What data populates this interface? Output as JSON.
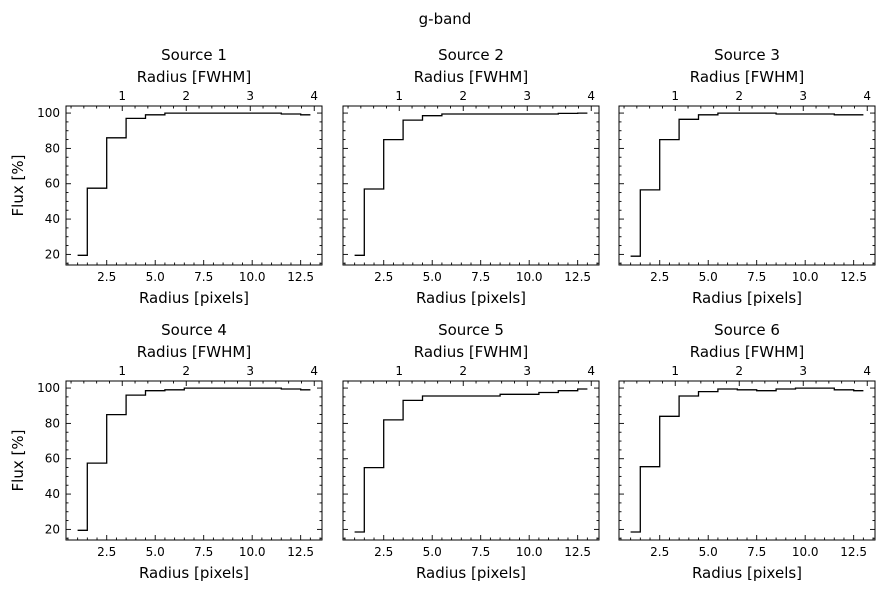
{
  "figure": {
    "suptitle": "g-band"
  },
  "chart_data": [
    {
      "type": "line",
      "step": "mid",
      "title": "Source 1",
      "xlabel": "Radius [pixels]",
      "ylabel": "Flux [%]",
      "top_xlabel": "Radius [FWHM]",
      "xlim": [
        0.4,
        13.6
      ],
      "ylim": [
        14,
        104
      ],
      "xticks": [
        2.5,
        5.0,
        7.5,
        10.0,
        12.5
      ],
      "yticks": [
        20,
        40,
        60,
        80,
        100
      ],
      "top_xticks": [
        1,
        2,
        3,
        4
      ],
      "fwhm_px": 3.3,
      "x": [
        1,
        2,
        3,
        4,
        5,
        6,
        7,
        8,
        9,
        10,
        11,
        12,
        13
      ],
      "y": [
        19.5,
        57.5,
        86.0,
        97.0,
        99.0,
        100.0,
        100.0,
        100.0,
        100.0,
        100.0,
        100.0,
        99.5,
        99.0
      ]
    },
    {
      "type": "line",
      "step": "mid",
      "title": "Source 2",
      "xlabel": "Radius [pixels]",
      "ylabel": "",
      "top_xlabel": "Radius [FWHM]",
      "xlim": [
        0.4,
        13.6
      ],
      "ylim": [
        14,
        104
      ],
      "xticks": [
        2.5,
        5.0,
        7.5,
        10.0,
        12.5
      ],
      "yticks": [
        20,
        40,
        60,
        80,
        100
      ],
      "top_xticks": [
        1,
        2,
        3,
        4
      ],
      "fwhm_px": 3.3,
      "x": [
        1,
        2,
        3,
        4,
        5,
        6,
        7,
        8,
        9,
        10,
        11,
        12,
        13
      ],
      "y": [
        19.5,
        57.0,
        85.0,
        96.0,
        98.5,
        99.5,
        99.5,
        99.5,
        99.5,
        99.5,
        99.5,
        99.8,
        100.0
      ]
    },
    {
      "type": "line",
      "step": "mid",
      "title": "Source 3",
      "xlabel": "Radius [pixels]",
      "ylabel": "",
      "top_xlabel": "Radius [FWHM]",
      "xlim": [
        0.4,
        13.6
      ],
      "ylim": [
        14,
        104
      ],
      "xticks": [
        2.5,
        5.0,
        7.5,
        10.0,
        12.5
      ],
      "yticks": [
        20,
        40,
        60,
        80,
        100
      ],
      "top_xticks": [
        1,
        2,
        3,
        4
      ],
      "fwhm_px": 3.3,
      "x": [
        1,
        2,
        3,
        4,
        5,
        6,
        7,
        8,
        9,
        10,
        11,
        12,
        13
      ],
      "y": [
        19.0,
        56.5,
        85.0,
        96.5,
        99.0,
        100.0,
        100.0,
        100.0,
        99.5,
        99.5,
        99.5,
        99.0,
        99.0
      ]
    },
    {
      "type": "line",
      "step": "mid",
      "title": "Source 4",
      "xlabel": "Radius [pixels]",
      "ylabel": "Flux [%]",
      "top_xlabel": "Radius [FWHM]",
      "xlim": [
        0.4,
        13.6
      ],
      "ylim": [
        14,
        104
      ],
      "xticks": [
        2.5,
        5.0,
        7.5,
        10.0,
        12.5
      ],
      "yticks": [
        20,
        40,
        60,
        80,
        100
      ],
      "top_xticks": [
        1,
        2,
        3,
        4
      ],
      "fwhm_px": 3.3,
      "x": [
        1,
        2,
        3,
        4,
        5,
        6,
        7,
        8,
        9,
        10,
        11,
        12,
        13
      ],
      "y": [
        19.5,
        57.5,
        85.0,
        96.0,
        98.5,
        99.0,
        100.0,
        100.0,
        100.0,
        100.0,
        100.0,
        99.5,
        99.0
      ]
    },
    {
      "type": "line",
      "step": "mid",
      "title": "Source 5",
      "xlabel": "Radius [pixels]",
      "ylabel": "",
      "top_xlabel": "Radius [FWHM]",
      "xlim": [
        0.4,
        13.6
      ],
      "ylim": [
        14,
        104
      ],
      "xticks": [
        2.5,
        5.0,
        7.5,
        10.0,
        12.5
      ],
      "yticks": [
        20,
        40,
        60,
        80,
        100
      ],
      "top_xticks": [
        1,
        2,
        3,
        4
      ],
      "fwhm_px": 3.3,
      "x": [
        1,
        2,
        3,
        4,
        5,
        6,
        7,
        8,
        9,
        10,
        11,
        12,
        13
      ],
      "y": [
        18.5,
        55.0,
        82.0,
        93.0,
        95.5,
        95.5,
        95.5,
        95.5,
        96.5,
        96.5,
        97.5,
        98.5,
        99.5
      ]
    },
    {
      "type": "line",
      "step": "mid",
      "title": "Source 6",
      "xlabel": "Radius [pixels]",
      "ylabel": "",
      "top_xlabel": "Radius [FWHM]",
      "xlim": [
        0.4,
        13.6
      ],
      "ylim": [
        14,
        104
      ],
      "xticks": [
        2.5,
        5.0,
        7.5,
        10.0,
        12.5
      ],
      "yticks": [
        20,
        40,
        60,
        80,
        100
      ],
      "top_xticks": [
        1,
        2,
        3,
        4
      ],
      "fwhm_px": 3.3,
      "x": [
        1,
        2,
        3,
        4,
        5,
        6,
        7,
        8,
        9,
        10,
        11,
        12,
        13
      ],
      "y": [
        18.5,
        55.5,
        84.0,
        95.5,
        98.0,
        99.5,
        99.0,
        98.5,
        99.5,
        100.0,
        100.0,
        99.0,
        98.5
      ]
    }
  ]
}
